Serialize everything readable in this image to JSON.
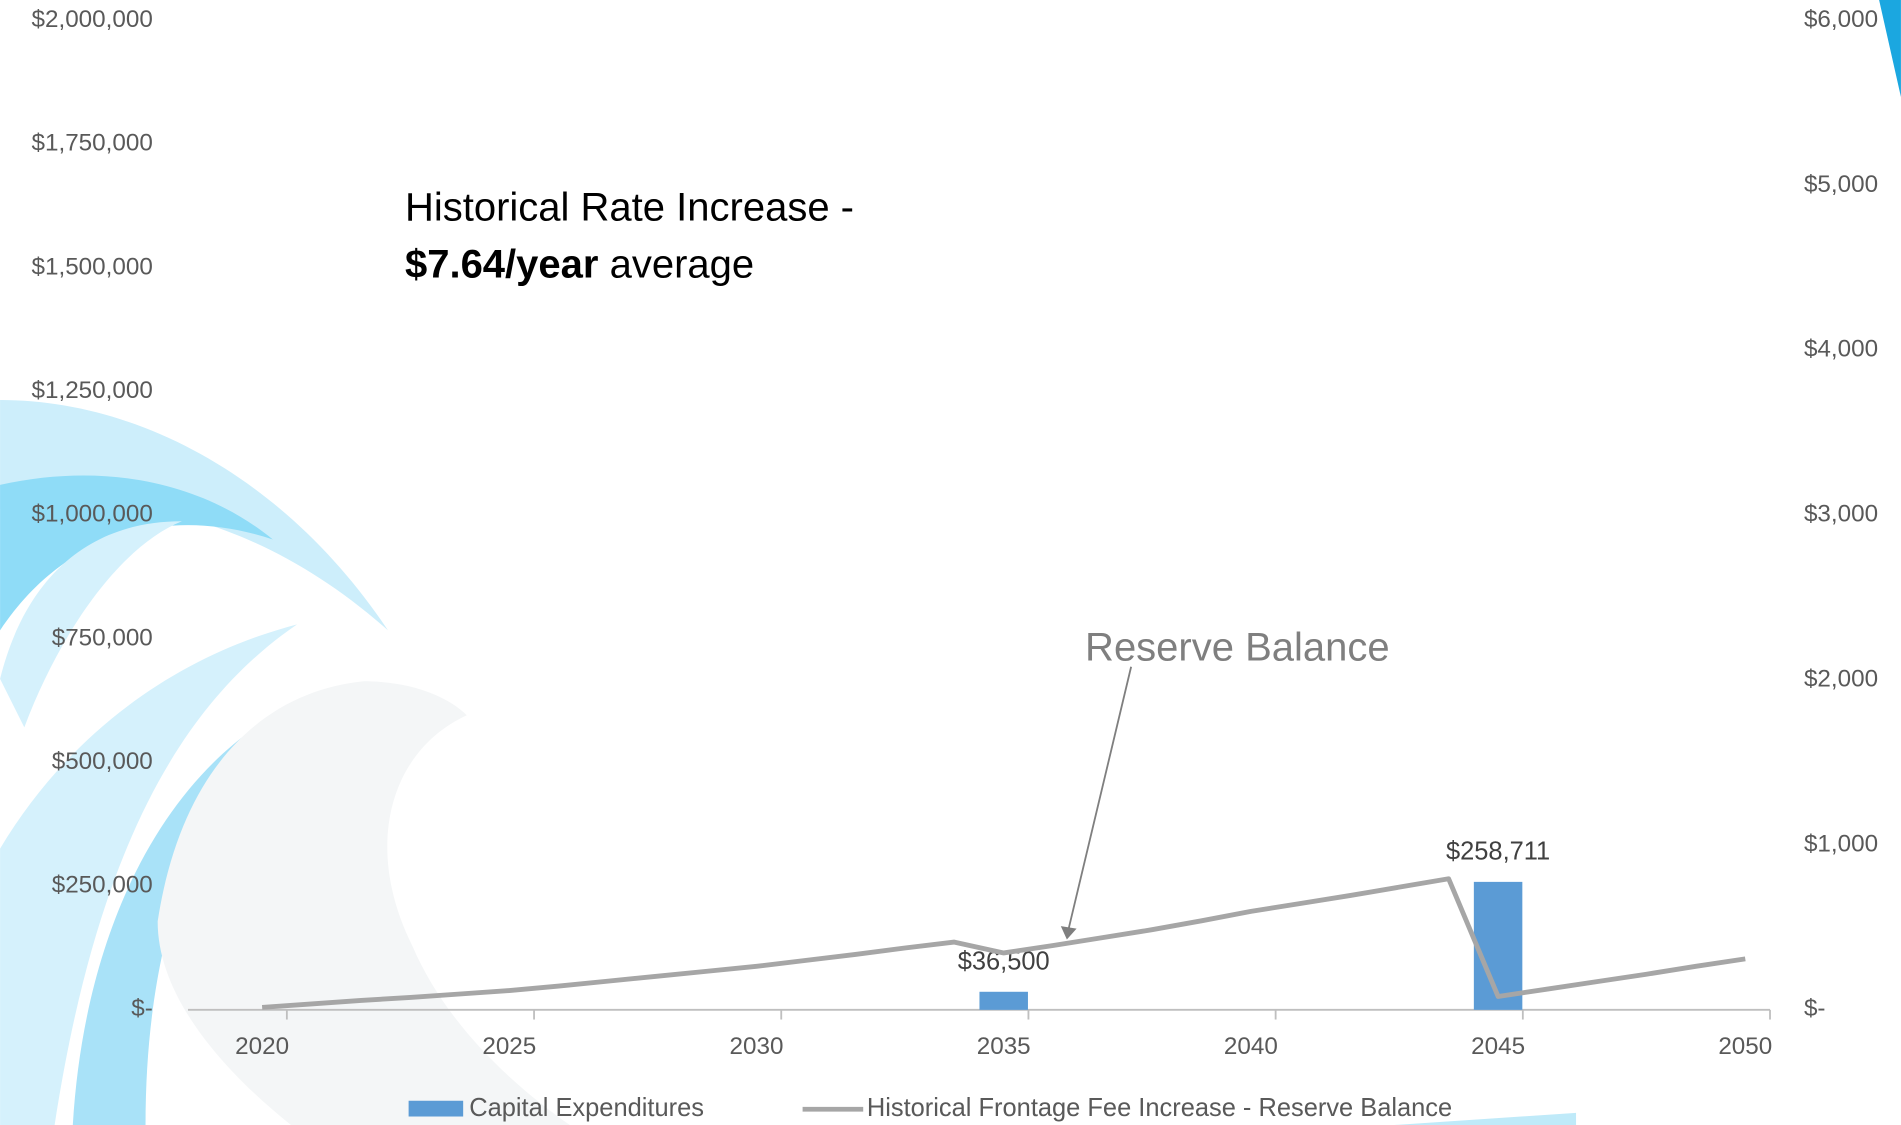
{
  "chart_data": {
    "type": "combo",
    "annotations": [
      "Historical Rate Increase -",
      "$7.64/year",
      "average",
      "Reserve Balance"
    ],
    "xlim": [
      2018.5,
      2050.5
    ],
    "xticks": [
      2020,
      2025,
      2030,
      2035,
      2040,
      2045,
      2050
    ],
    "ylim": [
      0,
      2000000
    ],
    "yticks": [
      {
        "value": 0,
        "label": "$-"
      },
      {
        "value": 250000,
        "label": "$250,000"
      },
      {
        "value": 500000,
        "label": "$500,000"
      },
      {
        "value": 750000,
        "label": "$750,000"
      },
      {
        "value": 1000000,
        "label": "$1,000,000"
      },
      {
        "value": 1250000,
        "label": "$1,250,000"
      },
      {
        "value": 1500000,
        "label": "$1,500,000"
      },
      {
        "value": 1750000,
        "label": "$1,750,000"
      },
      {
        "value": 2000000,
        "label": "$2,000,000"
      }
    ],
    "y2lim": [
      0,
      6000
    ],
    "y2ticks": [
      {
        "value": 0,
        "label": "$-"
      },
      {
        "value": 1000,
        "label": "$1,000"
      },
      {
        "value": 2000,
        "label": "$2,000"
      },
      {
        "value": 3000,
        "label": "$3,000"
      },
      {
        "value": 4000,
        "label": "$4,000"
      },
      {
        "value": 5000,
        "label": "$5,000"
      },
      {
        "value": 6000,
        "label": "$6,000"
      }
    ],
    "series": [
      {
        "name": "Capital Expenditures",
        "type": "bar",
        "color": "#5b9bd5",
        "x": [
          2035,
          2045
        ],
        "values": [
          36500,
          258711
        ],
        "value_labels": [
          "$36,500",
          "$258,711"
        ]
      },
      {
        "name": "Historical Frontage Fee Increase - Reserve Balance",
        "type": "line",
        "color": "#a6a6a6",
        "x": [
          2020,
          2021,
          2022,
          2023,
          2024,
          2025,
          2026,
          2027,
          2028,
          2029,
          2030,
          2031,
          2032,
          2033,
          2034,
          2035,
          2036,
          2037,
          2038,
          2039,
          2040,
          2041,
          2042,
          2043,
          2044,
          2045,
          2046,
          2047,
          2048,
          2049,
          2050
        ],
        "values": [
          5000,
          12000,
          19000,
          25000,
          32000,
          39000,
          48000,
          58000,
          68000,
          78000,
          88000,
          100000,
          112000,
          125000,
          137000,
          115000,
          130000,
          146000,
          162000,
          180000,
          199000,
          215000,
          231000,
          248000,
          265000,
          27000,
          42000,
          57000,
          72000,
          88000,
          103000
        ]
      }
    ]
  }
}
